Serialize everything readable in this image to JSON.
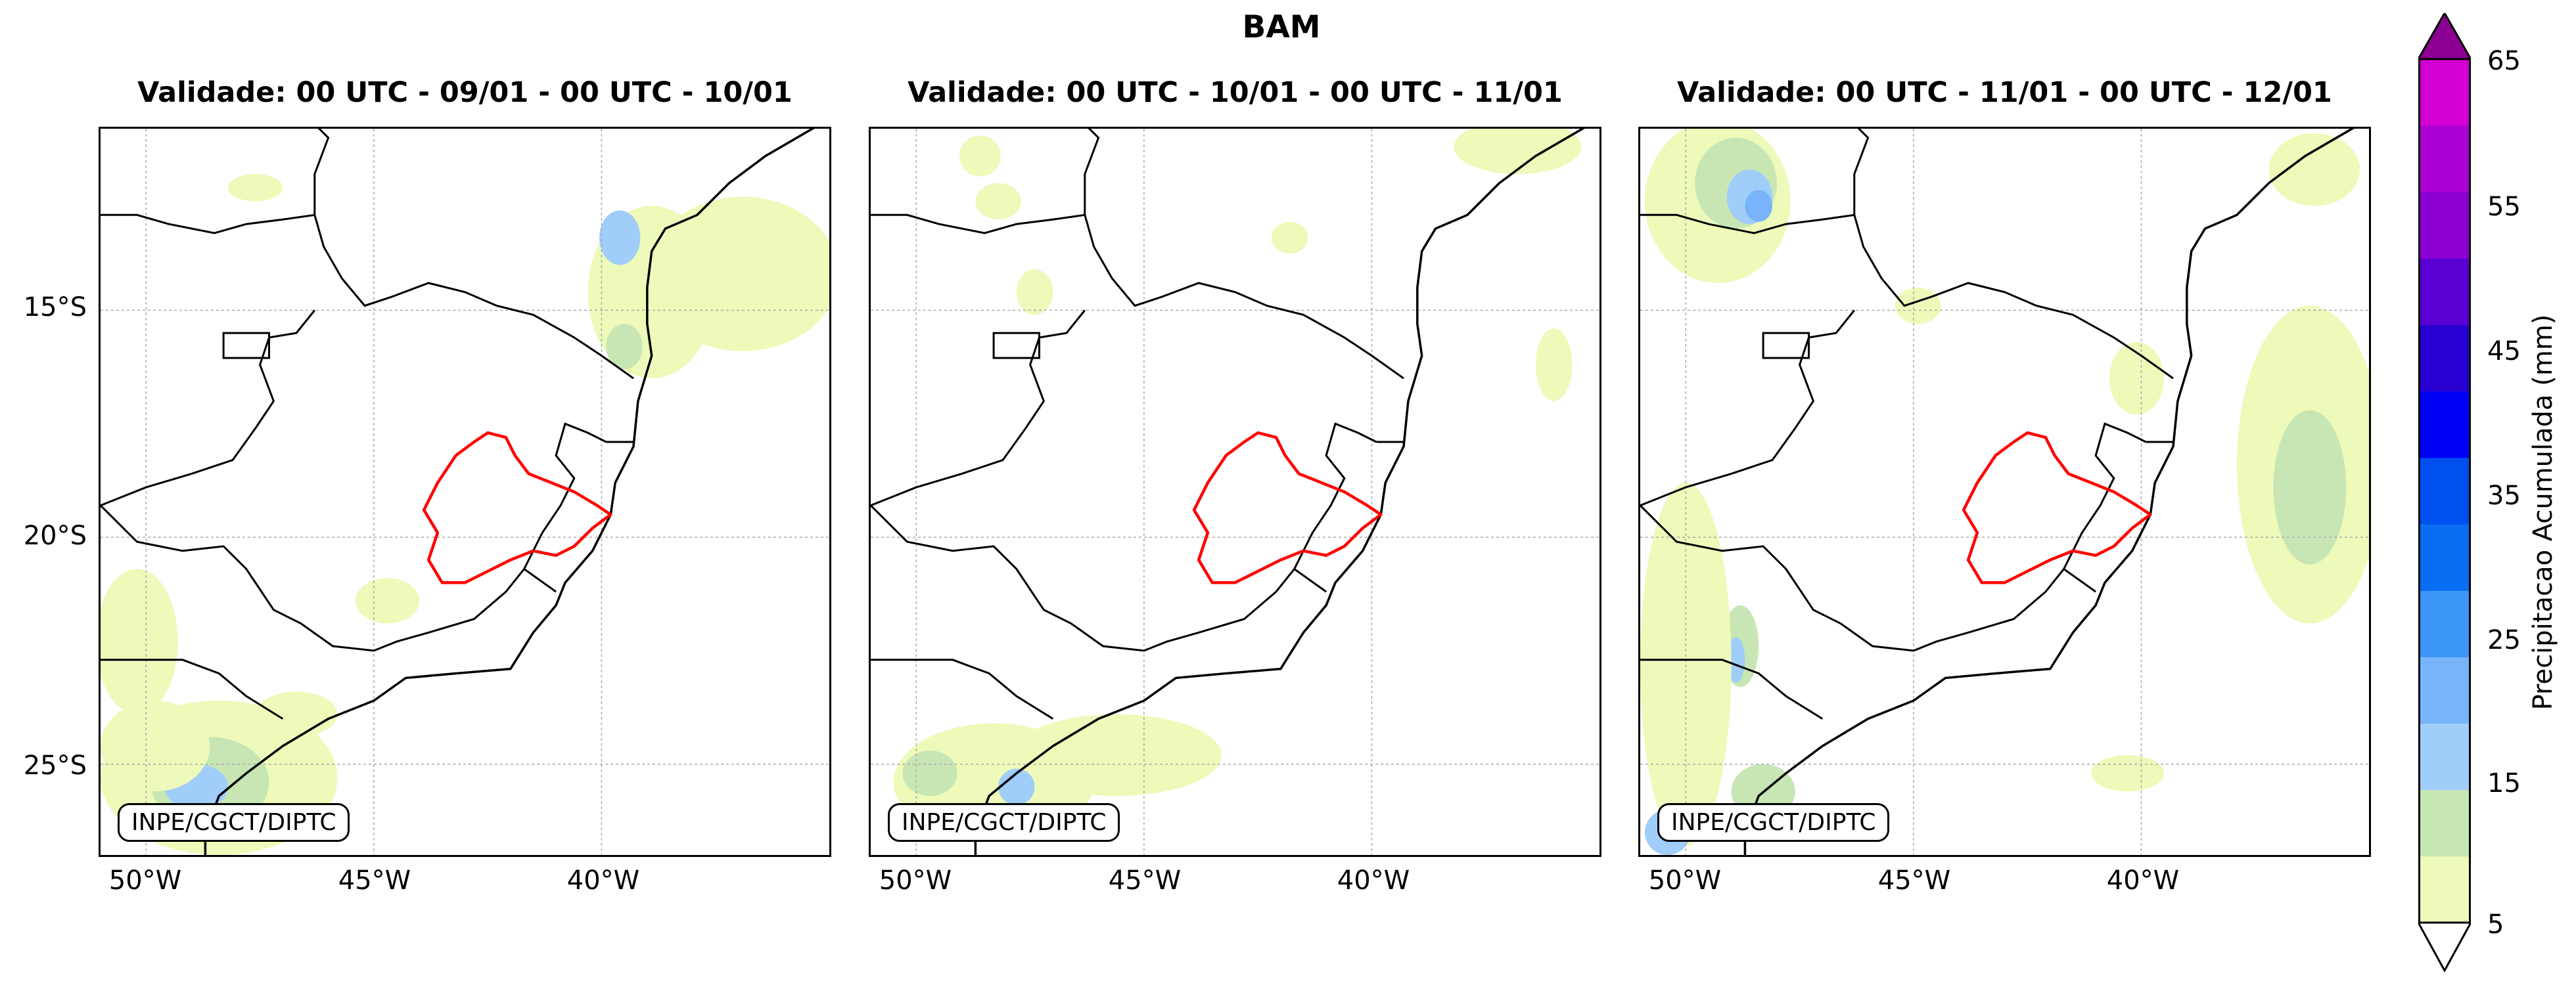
{
  "title": "BAM",
  "panels": [
    {
      "title": "Validade: 00 UTC - 09/01 - 00 UTC - 10/01",
      "credit": "INPE/CGCT/DIPTC"
    },
    {
      "title": "Validade: 00 UTC - 10/01 - 00 UTC - 11/01",
      "credit": "INPE/CGCT/DIPTC"
    },
    {
      "title": "Validade: 00 UTC - 11/01 - 00 UTC - 12/01",
      "credit": "INPE/CGCT/DIPTC"
    }
  ],
  "axes": {
    "lat_ticks": [
      "15°S",
      "20°S",
      "25°S"
    ],
    "lon_ticks": [
      "50°W",
      "45°W",
      "40°W"
    ],
    "lat_values": [
      -15,
      -20,
      -25
    ],
    "lon_values": [
      -50,
      -45,
      -40
    ],
    "lat_range": [
      -27,
      -11
    ],
    "lon_range": [
      -51,
      -35
    ],
    "gridlines": true
  },
  "colorbar": {
    "label": "Precipitacao Acumulada (mm)",
    "tick_labels": [
      "5",
      "15",
      "25",
      "35",
      "45",
      "55",
      "65"
    ],
    "levels": [
      5,
      10,
      15,
      20,
      25,
      30,
      35,
      40,
      45,
      50,
      55,
      60,
      65
    ],
    "colors": [
      "#edfab9",
      "#c8e6b4",
      "#a0cdfa",
      "#78b4fa",
      "#3c96f5",
      "#0a6ef5",
      "#0050f0",
      "#0000f5",
      "#2800d2",
      "#5a00d2",
      "#8c00d2",
      "#aa00d2",
      "#d200d2"
    ],
    "extend_min_color": "#ffffff",
    "extend_max_color": "#8c0091"
  },
  "colors": {
    "basin_outline": "#ff0000",
    "border": "#000000",
    "gridline": "#aaaaaa"
  }
}
